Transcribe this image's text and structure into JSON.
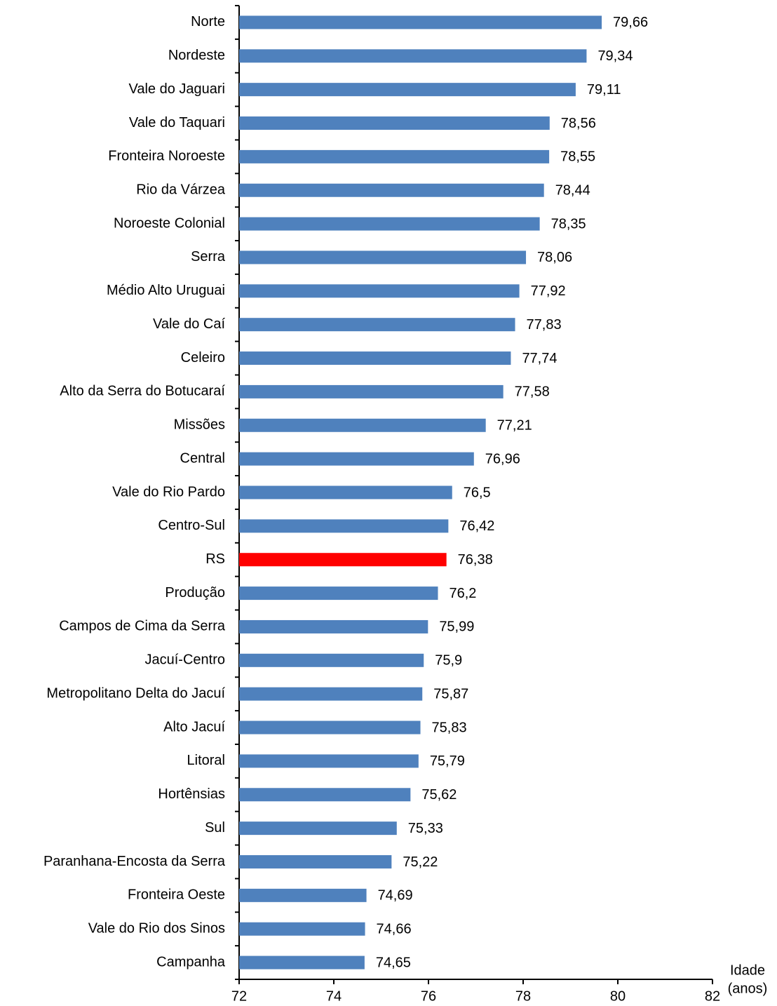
{
  "chart_data": {
    "type": "barh",
    "xlabel": [
      "Idade",
      "(anos)"
    ],
    "categories": [
      "Norte",
      "Nordeste",
      "Vale do Jaguari",
      "Vale do Taquari",
      "Fronteira Noroeste",
      "Rio da Várzea",
      "Noroeste Colonial",
      "Serra",
      "Médio Alto Uruguai",
      "Vale do Caí",
      "Celeiro",
      "Alto da Serra do Botucaraí",
      "Missões",
      "Central",
      "Vale do Rio Pardo",
      "Centro-Sul",
      "RS",
      "Produção",
      "Campos de Cima da Serra",
      "Jacuí-Centro",
      "Metropolitano Delta do Jacuí",
      "Alto Jacuí",
      "Litoral",
      "Hortênsias",
      "Sul",
      "Paranhana-Encosta da Serra",
      "Fronteira Oeste",
      "Vale do Rio dos Sinos",
      "Campanha"
    ],
    "values": [
      79.66,
      79.34,
      79.11,
      78.56,
      78.55,
      78.44,
      78.35,
      78.06,
      77.92,
      77.83,
      77.74,
      77.58,
      77.21,
      76.96,
      76.5,
      76.42,
      76.38,
      76.2,
      75.99,
      75.9,
      75.87,
      75.83,
      75.79,
      75.62,
      75.33,
      75.22,
      74.69,
      74.66,
      74.65
    ],
    "value_labels": [
      "79,66",
      "79,34",
      "79,11",
      "78,56",
      "78,55",
      "78,44",
      "78,35",
      "78,06",
      "77,92",
      "77,83",
      "77,74",
      "77,58",
      "77,21",
      "76,96",
      "76,5",
      "76,42",
      "76,38",
      "76,2",
      "75,99",
      "75,9",
      "75,87",
      "75,83",
      "75,79",
      "75,62",
      "75,33",
      "75,22",
      "74,69",
      "74,66",
      "74,65"
    ],
    "colors": [
      "#4f81bd",
      "#4f81bd",
      "#4f81bd",
      "#4f81bd",
      "#4f81bd",
      "#4f81bd",
      "#4f81bd",
      "#4f81bd",
      "#4f81bd",
      "#4f81bd",
      "#4f81bd",
      "#4f81bd",
      "#4f81bd",
      "#4f81bd",
      "#4f81bd",
      "#4f81bd",
      "#ff0000",
      "#4f81bd",
      "#4f81bd",
      "#4f81bd",
      "#4f81bd",
      "#4f81bd",
      "#4f81bd",
      "#4f81bd",
      "#4f81bd",
      "#4f81bd",
      "#4f81bd",
      "#4f81bd",
      "#4f81bd"
    ],
    "xlim": [
      72,
      82
    ],
    "xticks": [
      72,
      74,
      76,
      78,
      80,
      82
    ],
    "grid": false
  }
}
